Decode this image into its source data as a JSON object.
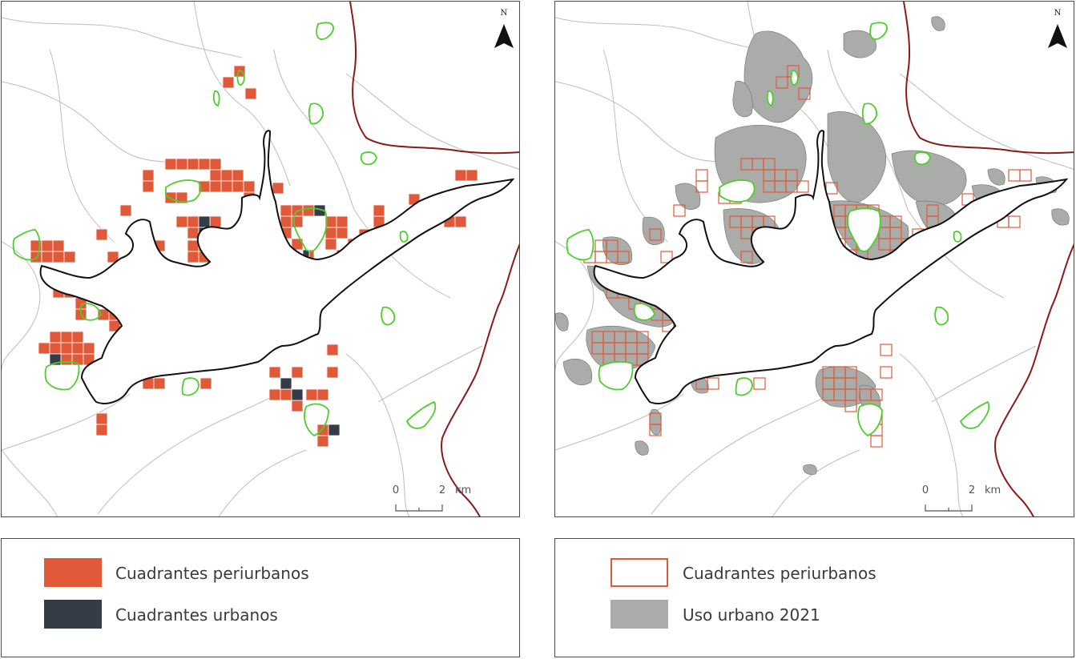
{
  "colors": {
    "periurban_fill": "#e05a3a",
    "urban_fill": "#363b48",
    "periurban_outline": "#e05a3a",
    "urban_use_fill": "#a9aca8",
    "urban_use_stroke": "#6e716d",
    "boundary_black": "#111111",
    "green_outline": "#4ccf2c",
    "border_red": "#8b1a1a",
    "grey_lines": "#bdbdbd"
  },
  "icons": {
    "north": "north-arrow-icon"
  },
  "maps": {
    "left": {
      "north_label": "N",
      "scale": {
        "zero": "0",
        "two": "2",
        "unit": "km"
      }
    },
    "right": {
      "north_label": "N",
      "scale": {
        "zero": "0",
        "two": "2",
        "unit": "km"
      }
    }
  },
  "legend_left": {
    "items": [
      {
        "label": "Cuadrantes periurbanos"
      },
      {
        "label": "Cuadrantes urbanos"
      }
    ]
  },
  "legend_right": {
    "items": [
      {
        "label": "Cuadrantes periurbanos"
      },
      {
        "label": "Uso urbano 2021"
      }
    ]
  }
}
